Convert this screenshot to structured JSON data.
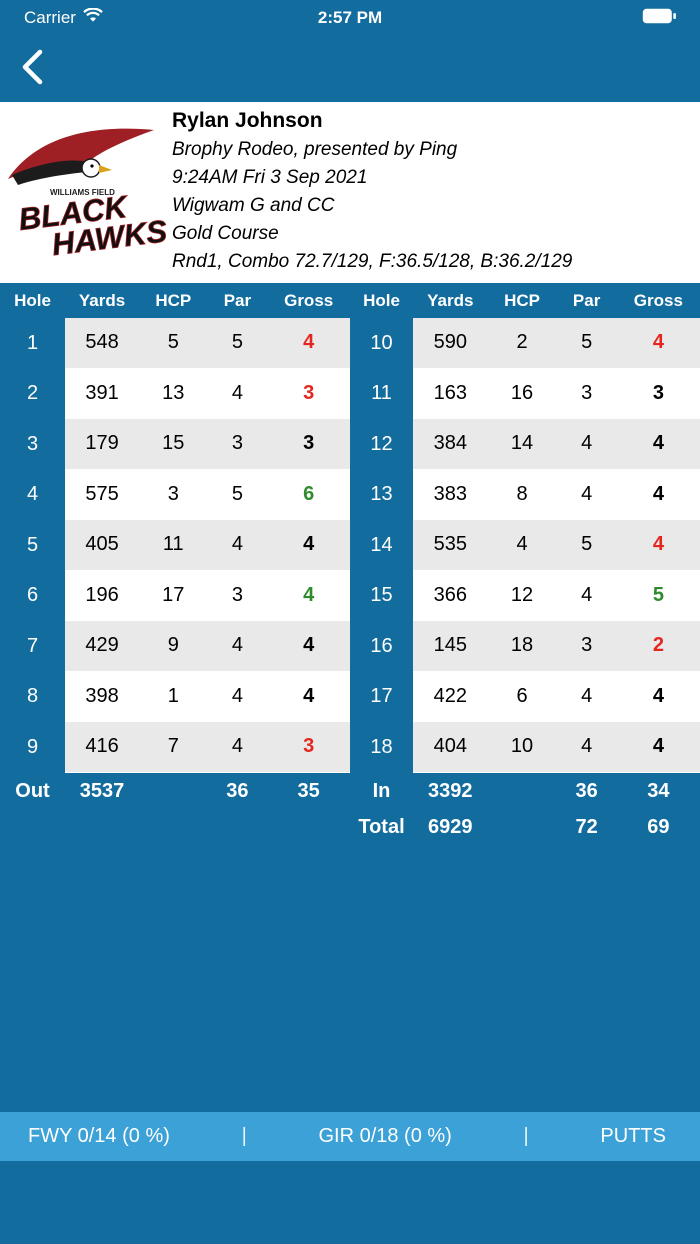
{
  "status_bar": {
    "carrier": "Carrier",
    "time": "2:57 PM"
  },
  "header": {
    "back_label": "back"
  },
  "logo": {
    "small_text": "WILLIAMS FIELD",
    "line1": "BLACK",
    "line2": "HAWKS"
  },
  "player": {
    "name": "Rylan Johnson",
    "event": "Brophy Rodeo, presented by Ping",
    "datetime": "9:24AM Fri 3 Sep 2021",
    "club": "Wigwam G and CC",
    "course": "Gold Course",
    "round_info": "Rnd1, Combo 72.7/129, F:36.5/128, B:36.2/129"
  },
  "scorecard": {
    "columns": [
      "Hole",
      "Yards",
      "HCP",
      "Par",
      "Gross"
    ],
    "front": [
      {
        "hole": 1,
        "yards": 548,
        "hcp": 5,
        "par": 5,
        "gross": 4,
        "gross_color": "birdie"
      },
      {
        "hole": 2,
        "yards": 391,
        "hcp": 13,
        "par": 4,
        "gross": 3,
        "gross_color": "birdie"
      },
      {
        "hole": 3,
        "yards": 179,
        "hcp": 15,
        "par": 3,
        "gross": 3,
        "gross_color": "par"
      },
      {
        "hole": 4,
        "yards": 575,
        "hcp": 3,
        "par": 5,
        "gross": 6,
        "gross_color": "bogey"
      },
      {
        "hole": 5,
        "yards": 405,
        "hcp": 11,
        "par": 4,
        "gross": 4,
        "gross_color": "par"
      },
      {
        "hole": 6,
        "yards": 196,
        "hcp": 17,
        "par": 3,
        "gross": 4,
        "gross_color": "bogey"
      },
      {
        "hole": 7,
        "yards": 429,
        "hcp": 9,
        "par": 4,
        "gross": 4,
        "gross_color": "par"
      },
      {
        "hole": 8,
        "yards": 398,
        "hcp": 1,
        "par": 4,
        "gross": 4,
        "gross_color": "par"
      },
      {
        "hole": 9,
        "yards": 416,
        "hcp": 7,
        "par": 4,
        "gross": 3,
        "gross_color": "birdie"
      }
    ],
    "back": [
      {
        "hole": 10,
        "yards": 590,
        "hcp": 2,
        "par": 5,
        "gross": 4,
        "gross_color": "birdie"
      },
      {
        "hole": 11,
        "yards": 163,
        "hcp": 16,
        "par": 3,
        "gross": 3,
        "gross_color": "par"
      },
      {
        "hole": 12,
        "yards": 384,
        "hcp": 14,
        "par": 4,
        "gross": 4,
        "gross_color": "par"
      },
      {
        "hole": 13,
        "yards": 383,
        "hcp": 8,
        "par": 4,
        "gross": 4,
        "gross_color": "par"
      },
      {
        "hole": 14,
        "yards": 535,
        "hcp": 4,
        "par": 5,
        "gross": 4,
        "gross_color": "birdie"
      },
      {
        "hole": 15,
        "yards": 366,
        "hcp": 12,
        "par": 4,
        "gross": 5,
        "gross_color": "bogey"
      },
      {
        "hole": 16,
        "yards": 145,
        "hcp": 18,
        "par": 3,
        "gross": 2,
        "gross_color": "birdie"
      },
      {
        "hole": 17,
        "yards": 422,
        "hcp": 6,
        "par": 4,
        "gross": 4,
        "gross_color": "par"
      },
      {
        "hole": 18,
        "yards": 404,
        "hcp": 10,
        "par": 4,
        "gross": 4,
        "gross_color": "par"
      }
    ],
    "out": {
      "label": "Out",
      "yards": "3537",
      "par": "36",
      "gross": "35"
    },
    "in": {
      "label": "In",
      "yards": "3392",
      "par": "36",
      "gross": "34"
    },
    "total": {
      "label": "Total",
      "yards": "6929",
      "par": "72",
      "gross": "69"
    }
  },
  "footer": {
    "fwy_label": "FWY 0/14 (0 %)",
    "separator": "|",
    "gir_label": "GIR 0/18 (0 %)",
    "putts_label": "PUTTS"
  },
  "colors": {
    "primary_blue": "#136C9E",
    "footer_blue": "#3BA1D6",
    "birdie_red": "#E5261F",
    "bogey_green": "#2E8B2E",
    "row_gray": "#E9E9E9"
  }
}
